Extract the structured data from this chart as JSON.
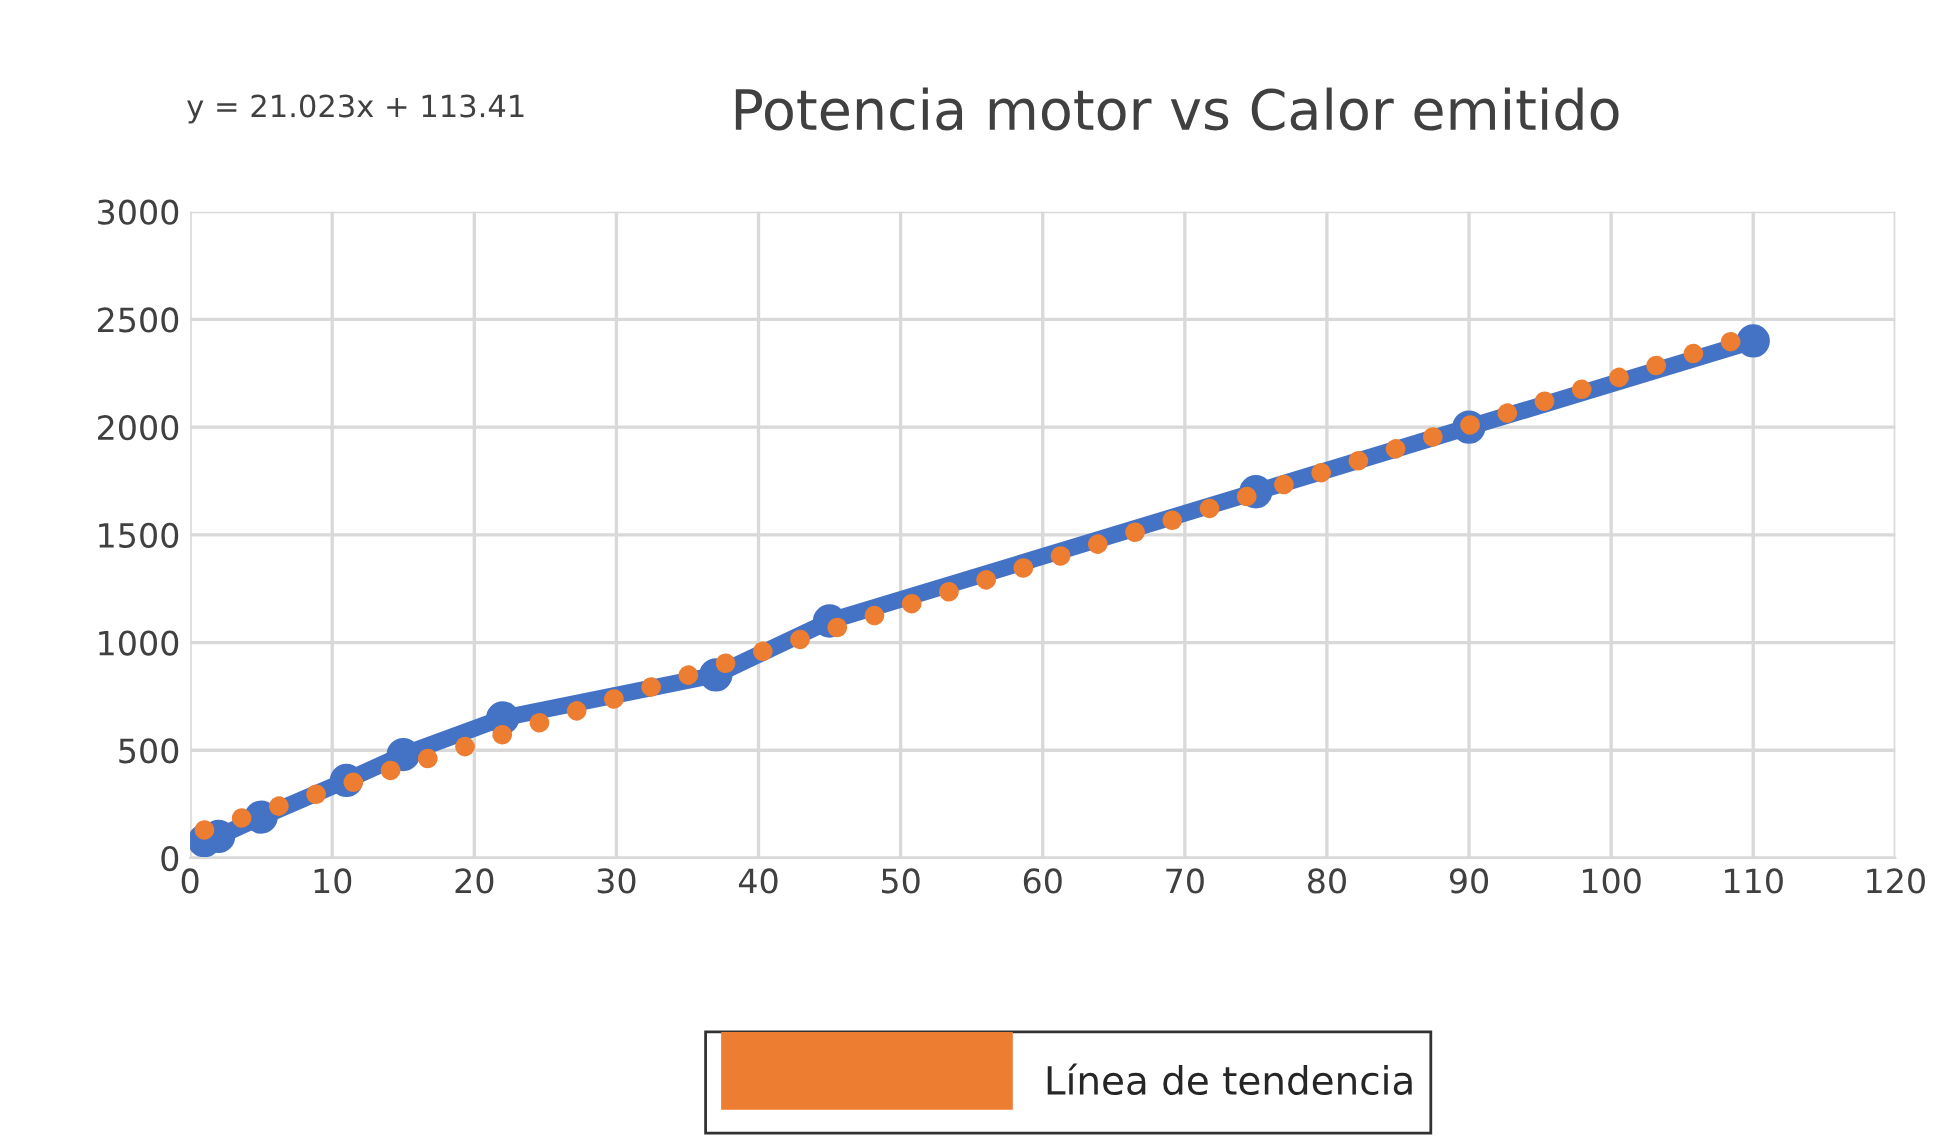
{
  "chart_data": {
    "type": "line",
    "title": "Potencia motor vs Calor emitido",
    "annotations": [
      "y = 21.023x + 113.41"
    ],
    "series": [
      {
        "color": "#4472c4",
        "marker": "circle",
        "line_style": "solid",
        "x": [
          1,
          2,
          5,
          11,
          15,
          22,
          37,
          45,
          75,
          90,
          110
        ],
        "values": [
          80,
          100,
          190,
          360,
          480,
          650,
          850,
          1100,
          1700,
          2000,
          2400
        ]
      },
      {
        "name": "Línea de tendencia",
        "color": "#ed7d31",
        "marker": "none",
        "line_style": "dotted",
        "x": [
          1,
          110
        ],
        "values": [
          130,
          2430
        ]
      }
    ],
    "xlim": [
      0,
      120
    ],
    "xticks": [
      0,
      10,
      20,
      30,
      40,
      50,
      60,
      70,
      80,
      90,
      100,
      110,
      120
    ],
    "ylim": [
      0,
      3000
    ],
    "yticks": [
      0,
      500,
      1000,
      1500,
      2000,
      2500,
      3000
    ],
    "grid": true,
    "legend": "bottom"
  }
}
